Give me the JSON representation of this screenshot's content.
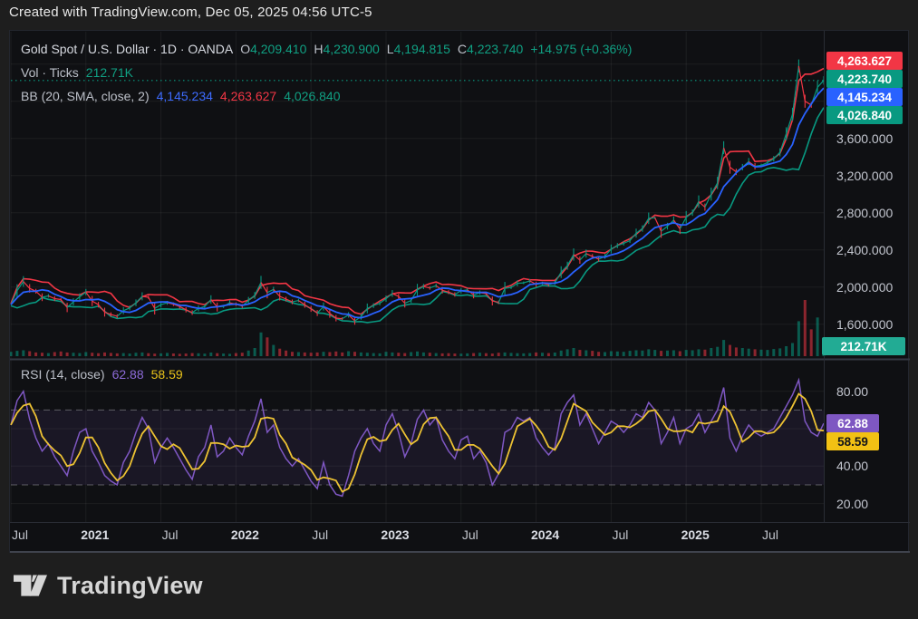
{
  "attribution": "Created with TradingView.com, Dec 05, 2025 04:56 UTC-5",
  "main_legend": {
    "title": "Gold Spot / U.S. Dollar · 1D · OANDA",
    "o_label": "O",
    "o_value": "4,209.410",
    "h_label": "H",
    "h_value": "4,230.900",
    "l_label": "L",
    "l_value": "4,194.815",
    "c_label": "C",
    "c_value": "4,223.740",
    "change": "+14.975 (+0.36%)"
  },
  "volume_legend": {
    "label": "Vol · Ticks",
    "value": "212.71K"
  },
  "bb_legend": {
    "label": "BB (20, SMA, close, 2)",
    "basis": "4,145.234",
    "upper": "4,263.627",
    "lower": "4,026.840"
  },
  "rsi_legend": {
    "label": "RSI (14, close)",
    "rsi": "62.88",
    "ma": "58.59"
  },
  "footer": {
    "brand": "TradingView"
  },
  "colors": {
    "up": "#089981",
    "down": "#f23645",
    "bb_upper": "#f23645",
    "bb_basis": "#2962ff",
    "bb_lower": "#089981",
    "rsi_line": "#7e57c2",
    "rsi_ma": "#edc233",
    "volume_badge": "#22ab94",
    "last_price": "#089981",
    "rsi_badge": "#7e57c2",
    "rsi_ma_badge": "#f2c114",
    "grid": "rgba(255,255,255,0.06)",
    "band_fill": "rgba(126,87,194,0.10)",
    "dashed_level": "rgba(255,255,255,0.32)"
  },
  "price_axis": {
    "labels": [
      {
        "text": "3,600.000",
        "value": 3600
      },
      {
        "text": "3,200.000",
        "value": 3200
      },
      {
        "text": "2,800.000",
        "value": 2800
      },
      {
        "text": "2,400.000",
        "value": 2400
      },
      {
        "text": "2,000.000",
        "value": 2000
      },
      {
        "text": "1,600.000",
        "value": 1600
      }
    ],
    "badges": [
      {
        "text": "4,263.627",
        "bg": "#f23645",
        "fg": "#ffffff",
        "role": "bb-upper"
      },
      {
        "text": "4,223.740",
        "bg": "#089981",
        "fg": "#ffffff",
        "role": "last-price"
      },
      {
        "text": "4,145.234",
        "bg": "#2962ff",
        "fg": "#ffffff",
        "role": "bb-basis"
      },
      {
        "text": "4,026.840",
        "bg": "#089981",
        "fg": "#ffffff",
        "role": "bb-lower"
      }
    ],
    "volume_badge": {
      "text": "212.71K",
      "bg": "#22ab94",
      "fg": "#ffffff"
    }
  },
  "rsi_axis": {
    "labels": [
      {
        "text": "80.00",
        "value": 80
      },
      {
        "text": "40.00",
        "value": 40
      },
      {
        "text": "20.00",
        "value": 20
      }
    ],
    "badges": [
      {
        "text": "62.88",
        "bg": "#7e57c2",
        "fg": "#ffffff",
        "role": "rsi-value"
      },
      {
        "text": "58.59",
        "bg": "#f2c114",
        "fg": "#14151a",
        "role": "rsi-ma-value"
      }
    ]
  },
  "time_axis": [
    {
      "label": "Jul",
      "m": 0,
      "year": false
    },
    {
      "label": "2021",
      "m": 6,
      "year": true
    },
    {
      "label": "Jul",
      "m": 12,
      "year": false
    },
    {
      "label": "2022",
      "m": 18,
      "year": true
    },
    {
      "label": "Jul",
      "m": 24,
      "year": false
    },
    {
      "label": "2023",
      "m": 30,
      "year": true
    },
    {
      "label": "Jul",
      "m": 36,
      "year": false
    },
    {
      "label": "2024",
      "m": 42,
      "year": true
    },
    {
      "label": "Jul",
      "m": 48,
      "year": false
    },
    {
      "label": "2025",
      "m": 54,
      "year": true
    },
    {
      "label": "Jul",
      "m": 60,
      "year": false
    }
  ],
  "chart_data": {
    "type": "line",
    "title": "Gold Spot / U.S. Dollar",
    "timeframe": "1D",
    "exchange": "OANDA",
    "x_start": "2020-07",
    "x_end": "2025-12",
    "points_per_month": 2,
    "total_months": 65,
    "ohlc_last": {
      "open": 4209.41,
      "high": 4230.9,
      "low": 4194.815,
      "close": 4223.74,
      "change": 14.975,
      "change_pct": 0.36
    },
    "bb_last": {
      "basis": 4145.234,
      "upper": 4263.627,
      "lower": 4026.84
    },
    "rsi_last": {
      "rsi": 62.88,
      "ma": 58.59
    },
    "volume_last_k": 212.71,
    "price_range": [
      1450,
      4700
    ],
    "price_grid": [
      1600,
      2000,
      2400,
      2800,
      3200,
      3600,
      4000,
      4400
    ],
    "rsi_range": [
      15,
      90
    ],
    "rsi_grid": [
      20,
      40,
      60,
      80
    ],
    "rsi_dashed_levels": [
      30,
      70
    ],
    "close": [
      1810,
      1960,
      2060,
      1985,
      1955,
      1890,
      1905,
      1875,
      1865,
      1780,
      1840,
      1895,
      1945,
      1850,
      1810,
      1730,
      1705,
      1685,
      1745,
      1775,
      1830,
      1900,
      1890,
      1770,
      1810,
      1830,
      1815,
      1790,
      1755,
      1725,
      1770,
      1790,
      1865,
      1785,
      1790,
      1830,
      1815,
      1795,
      1855,
      1910,
      2050,
      1940,
      1975,
      1900,
      1870,
      1840,
      1855,
      1810,
      1765,
      1720,
      1790,
      1715,
      1665,
      1660,
      1700,
      1635,
      1680,
      1770,
      1800,
      1825,
      1875,
      1930,
      1900,
      1825,
      1855,
      1970,
      2005,
      1990,
      2015,
      1965,
      1945,
      1920,
      1960,
      1970,
      1915,
      1940,
      1930,
      1850,
      1835,
      1985,
      1995,
      2040,
      2045,
      2065,
      2030,
      2040,
      2025,
      2045,
      2160,
      2230,
      2350,
      2290,
      2360,
      2330,
      2300,
      2330,
      2410,
      2445,
      2470,
      2500,
      2580,
      2630,
      2740,
      2745,
      2600,
      2655,
      2720,
      2625,
      2750,
      2800,
      2920,
      2860,
      3000,
      3120,
      3500,
      3290,
      3240,
      3290,
      3350,
      3300,
      3310,
      3340,
      3380,
      3450,
      3650,
      3860,
      4380,
      4000,
      3960,
      4150,
      4224
    ],
    "volume_k": [
      70,
      85,
      95,
      80,
      60,
      55,
      50,
      65,
      75,
      60,
      55,
      50,
      65,
      55,
      48,
      60,
      52,
      45,
      50,
      42,
      55,
      60,
      48,
      40,
      45,
      52,
      44,
      38,
      42,
      50,
      46,
      40,
      58,
      48,
      42,
      38,
      50,
      55,
      90,
      130,
      380,
      300,
      180,
      120,
      90,
      70,
      65,
      60,
      55,
      60,
      70,
      65,
      75,
      60,
      80,
      70,
      60,
      55,
      50,
      45,
      70,
      60,
      55,
      50,
      65,
      75,
      60,
      55,
      50,
      45,
      48,
      42,
      40,
      45,
      50,
      55,
      48,
      42,
      55,
      60,
      52,
      48,
      45,
      50,
      60,
      55,
      50,
      58,
      90,
      110,
      130,
      100,
      95,
      85,
      70,
      65,
      80,
      75,
      70,
      85,
      95,
      90,
      110,
      100,
      85,
      90,
      95,
      80,
      100,
      95,
      110,
      105,
      130,
      150,
      260,
      180,
      140,
      130,
      120,
      110,
      105,
      100,
      115,
      125,
      160,
      210,
      560,
      900,
      430,
      620,
      212.71
    ],
    "rsi": [
      62,
      75,
      80,
      65,
      55,
      48,
      52,
      45,
      40,
      35,
      48,
      58,
      60,
      48,
      42,
      35,
      32,
      30,
      42,
      48,
      58,
      66,
      60,
      42,
      50,
      55,
      50,
      44,
      38,
      33,
      45,
      50,
      62,
      45,
      48,
      55,
      50,
      46,
      56,
      64,
      76,
      58,
      62,
      50,
      44,
      40,
      44,
      38,
      32,
      28,
      42,
      30,
      25,
      24,
      35,
      48,
      55,
      60,
      52,
      48,
      62,
      68,
      58,
      45,
      52,
      65,
      70,
      62,
      66,
      54,
      48,
      44,
      54,
      56,
      44,
      48,
      42,
      30,
      36,
      58,
      60,
      66,
      64,
      66,
      55,
      50,
      46,
      50,
      68,
      74,
      78,
      62,
      68,
      60,
      52,
      58,
      64,
      62,
      58,
      62,
      68,
      66,
      74,
      70,
      52,
      58,
      66,
      52,
      60,
      62,
      68,
      58,
      64,
      70,
      82,
      55,
      48,
      56,
      62,
      58,
      56,
      58,
      60,
      66,
      72,
      78,
      86,
      64,
      58,
      56,
      62.88
    ]
  }
}
